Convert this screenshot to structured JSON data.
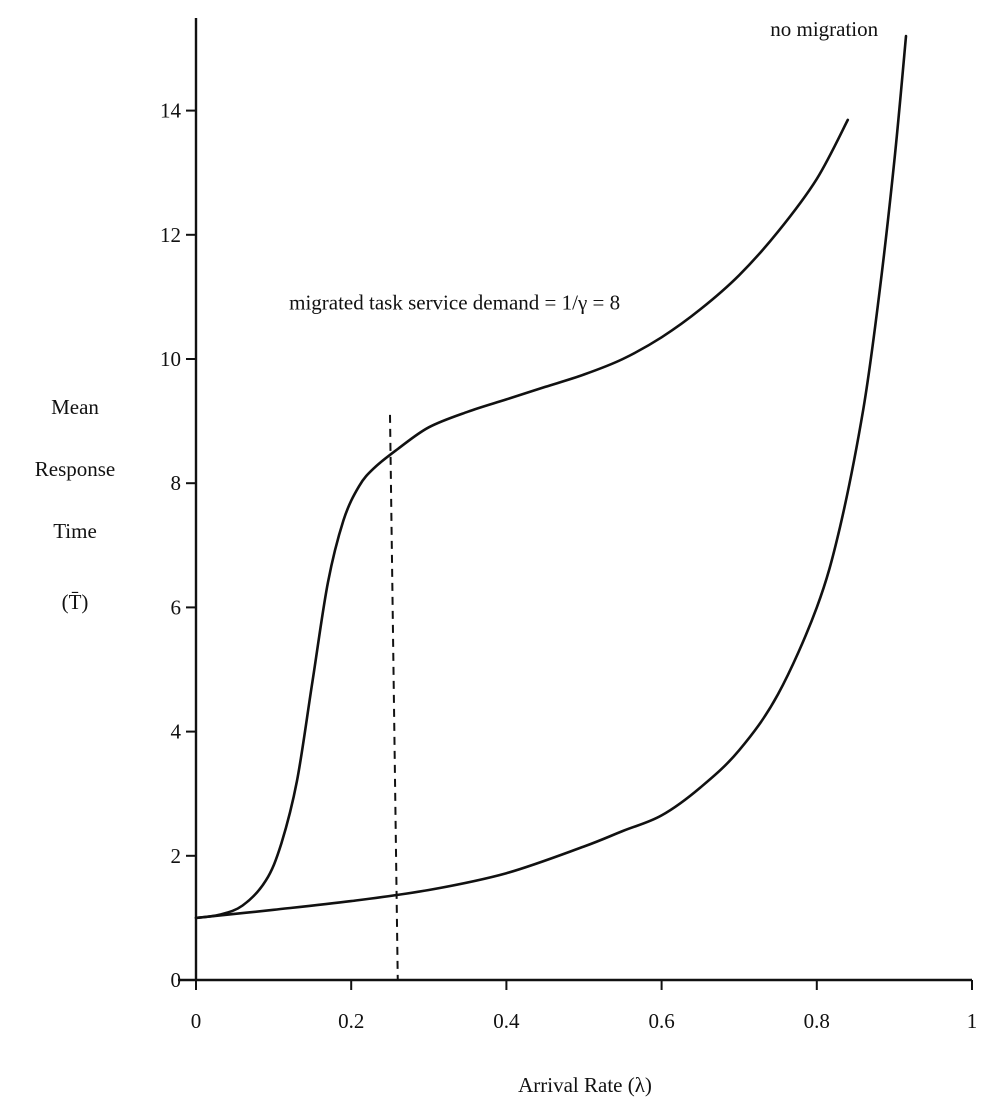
{
  "chart_data": {
    "type": "line",
    "xlabel": "Arrival Rate (λ)",
    "ylabel_lines": [
      "Mean",
      "Response",
      "Time",
      "(T̄)"
    ],
    "xlim": [
      0,
      1
    ],
    "ylim": [
      0,
      15.5
    ],
    "x_ticks": [
      0,
      0.2,
      0.4,
      0.6,
      0.8,
      1
    ],
    "x_tick_labels": [
      "0",
      "0.2",
      "0.4",
      "0.6",
      "0.8",
      "1"
    ],
    "y_ticks": [
      0,
      2,
      4,
      6,
      8,
      10,
      12,
      14
    ],
    "y_tick_labels": [
      "0",
      "2",
      "4",
      "6",
      "8",
      "10",
      "12",
      "14"
    ],
    "grid": false,
    "annotations": [
      {
        "text": "migrated task service demand = 1/γ = 8",
        "x": 0.12,
        "y": 10.8
      },
      {
        "text": "no migration",
        "x": 0.74,
        "y": 15.2
      }
    ],
    "reference_line": {
      "style": "dashed",
      "points": [
        [
          0.25,
          9.1
        ],
        [
          0.26,
          0
        ]
      ]
    },
    "series": [
      {
        "points": [
          [
            0,
            1.0
          ],
          [
            0.03,
            1.05
          ],
          [
            0.06,
            1.2
          ],
          [
            0.09,
            1.6
          ],
          [
            0.11,
            2.2
          ],
          [
            0.13,
            3.2
          ],
          [
            0.15,
            4.8
          ],
          [
            0.17,
            6.4
          ],
          [
            0.19,
            7.4
          ],
          [
            0.21,
            7.95
          ],
          [
            0.23,
            8.25
          ],
          [
            0.26,
            8.55
          ],
          [
            0.3,
            8.9
          ],
          [
            0.35,
            9.15
          ],
          [
            0.4,
            9.35
          ],
          [
            0.45,
            9.55
          ],
          [
            0.5,
            9.75
          ],
          [
            0.55,
            10.0
          ],
          [
            0.6,
            10.35
          ],
          [
            0.65,
            10.8
          ],
          [
            0.7,
            11.35
          ],
          [
            0.75,
            12.05
          ],
          [
            0.8,
            12.9
          ],
          [
            0.84,
            13.85
          ]
        ]
      },
      {
        "points": [
          [
            0,
            1.0
          ],
          [
            0.1,
            1.13
          ],
          [
            0.2,
            1.27
          ],
          [
            0.3,
            1.45
          ],
          [
            0.4,
            1.72
          ],
          [
            0.5,
            2.15
          ],
          [
            0.55,
            2.4
          ],
          [
            0.6,
            2.65
          ],
          [
            0.65,
            3.1
          ],
          [
            0.7,
            3.7
          ],
          [
            0.75,
            4.6
          ],
          [
            0.8,
            6.0
          ],
          [
            0.83,
            7.3
          ],
          [
            0.86,
            9.2
          ],
          [
            0.88,
            11.0
          ],
          [
            0.9,
            13.2
          ],
          [
            0.915,
            15.2
          ]
        ]
      }
    ]
  }
}
